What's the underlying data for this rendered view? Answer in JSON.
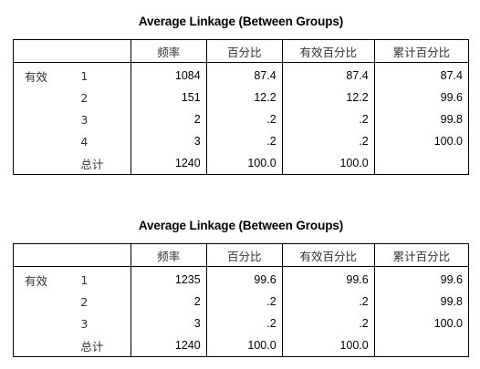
{
  "tables": [
    {
      "title": "Average Linkage (Between Groups)",
      "headers": [
        "",
        "",
        "频率",
        "百分比",
        "有效百分比",
        "累计百分比"
      ],
      "group_label": "有效",
      "rows": [
        {
          "label": "1",
          "freq": "1084",
          "pct": "87.4",
          "valid_pct": "87.4",
          "cum_pct": "87.4"
        },
        {
          "label": "2",
          "freq": "151",
          "pct": "12.2",
          "valid_pct": "12.2",
          "cum_pct": "99.6"
        },
        {
          "label": "3",
          "freq": "2",
          "pct": ".2",
          "valid_pct": ".2",
          "cum_pct": "99.8"
        },
        {
          "label": "4",
          "freq": "3",
          "pct": ".2",
          "valid_pct": ".2",
          "cum_pct": "100.0"
        },
        {
          "label": "总计",
          "freq": "1240",
          "pct": "100.0",
          "valid_pct": "100.0",
          "cum_pct": ""
        }
      ]
    },
    {
      "title": "Average Linkage (Between Groups)",
      "headers": [
        "",
        "",
        "频率",
        "百分比",
        "有效百分比",
        "累计百分比"
      ],
      "group_label": "有效",
      "rows": [
        {
          "label": "1",
          "freq": "1235",
          "pct": "99.6",
          "valid_pct": "99.6",
          "cum_pct": "99.6"
        },
        {
          "label": "2",
          "freq": "2",
          "pct": ".2",
          "valid_pct": ".2",
          "cum_pct": "99.8"
        },
        {
          "label": "3",
          "freq": "3",
          "pct": ".2",
          "valid_pct": ".2",
          "cum_pct": "100.0"
        },
        {
          "label": "总计",
          "freq": "1240",
          "pct": "100.0",
          "valid_pct": "100.0",
          "cum_pct": ""
        }
      ]
    }
  ]
}
